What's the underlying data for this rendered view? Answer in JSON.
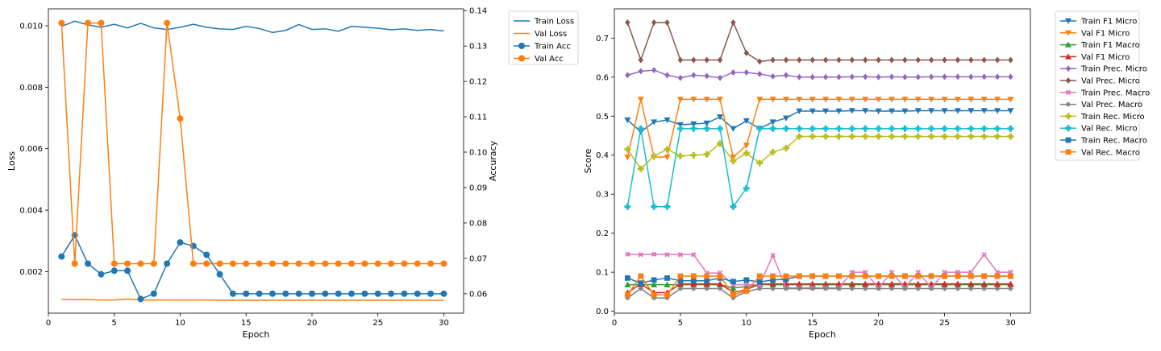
{
  "chart_data": [
    {
      "type": "line",
      "xlabel": "Epoch",
      "ylabel": "Loss",
      "y2label": "Accuracy",
      "x": [
        1,
        2,
        3,
        4,
        5,
        6,
        7,
        8,
        9,
        10,
        11,
        12,
        13,
        14,
        15,
        16,
        17,
        18,
        19,
        20,
        21,
        22,
        23,
        24,
        25,
        26,
        27,
        28,
        29,
        30
      ],
      "xlim": [
        0,
        31.5
      ],
      "ylim": [
        0.00065,
        0.01055
      ],
      "y2lim": [
        0.0545,
        0.1405
      ],
      "xticks": [
        0,
        5,
        10,
        15,
        20,
        25,
        30
      ],
      "yticks": [
        0.002,
        0.004,
        0.006,
        0.008,
        0.01
      ],
      "ytick_labels": [
        "0.002",
        "0.004",
        "0.006",
        "0.008",
        "0.010"
      ],
      "y2ticks": [
        0.06,
        0.07,
        0.08,
        0.09,
        0.1,
        0.11,
        0.12,
        0.13,
        0.14
      ],
      "y2tick_labels": [
        "0.06",
        "0.07",
        "0.08",
        "0.09",
        "0.10",
        "0.11",
        "0.12",
        "0.13",
        "0.14"
      ],
      "legend_position": "outside-top-right",
      "series": [
        {
          "name": "Train Loss",
          "axis": "left",
          "marker": "none",
          "color": "#1f77b4",
          "values": [
            0.00998,
            0.01015,
            0.01003,
            0.00995,
            0.01005,
            0.00993,
            0.01008,
            0.00993,
            0.00988,
            0.00995,
            0.01005,
            0.00995,
            0.0099,
            0.00988,
            0.00998,
            0.00991,
            0.00978,
            0.00985,
            0.01004,
            0.00988,
            0.0099,
            0.00982,
            0.00998,
            0.00995,
            0.00992,
            0.00987,
            0.0099,
            0.00985,
            0.00988,
            0.00983
          ]
        },
        {
          "name": "Val Loss",
          "axis": "left",
          "marker": "none",
          "color": "#ff7f0e",
          "values": [
            0.0011,
            0.00109,
            0.00109,
            0.00108,
            0.00108,
            0.00111,
            0.00108,
            0.00108,
            0.00108,
            0.00108,
            0.00108,
            0.00108,
            0.00107,
            0.00107,
            0.00107,
            0.00107,
            0.00107,
            0.00107,
            0.00107,
            0.00107,
            0.00107,
            0.00107,
            0.00107,
            0.00107,
            0.00107,
            0.00107,
            0.00107,
            0.00107,
            0.00107,
            0.00107
          ]
        },
        {
          "name": "Train Acc",
          "axis": "right",
          "marker": "circle",
          "color": "#1f77b4",
          "values": [
            0.0705,
            0.0765,
            0.0685,
            0.0655,
            0.0665,
            0.0665,
            0.0585,
            0.06,
            0.0685,
            0.0745,
            0.0735,
            0.071,
            0.0655,
            0.06,
            0.06,
            0.06,
            0.06,
            0.06,
            0.06,
            0.06,
            0.06,
            0.06,
            0.06,
            0.06,
            0.06,
            0.06,
            0.06,
            0.06,
            0.06,
            0.06
          ]
        },
        {
          "name": "Val Acc",
          "axis": "right",
          "marker": "circle",
          "color": "#ff7f0e",
          "values": [
            0.1365,
            0.0685,
            0.1365,
            0.1365,
            0.0685,
            0.0685,
            0.0685,
            0.0685,
            0.1365,
            0.1095,
            0.0685,
            0.0685,
            0.0685,
            0.0685,
            0.0685,
            0.0685,
            0.0685,
            0.0685,
            0.0685,
            0.0685,
            0.0685,
            0.0685,
            0.0685,
            0.0685,
            0.0685,
            0.0685,
            0.0685,
            0.0685,
            0.0685,
            0.0685
          ]
        }
      ]
    },
    {
      "type": "line",
      "xlabel": "Epoch",
      "ylabel": "Score",
      "x": [
        1,
        2,
        3,
        4,
        5,
        6,
        7,
        8,
        9,
        10,
        11,
        12,
        13,
        14,
        15,
        16,
        17,
        18,
        19,
        20,
        21,
        22,
        23,
        24,
        25,
        26,
        27,
        28,
        29,
        30
      ],
      "xlim": [
        0,
        31.5
      ],
      "ylim": [
        -0.005,
        0.775
      ],
      "xticks": [
        0,
        5,
        10,
        15,
        20,
        25,
        30
      ],
      "yticks": [
        0.0,
        0.1,
        0.2,
        0.3,
        0.4,
        0.5,
        0.6,
        0.7
      ],
      "ytick_labels": [
        "0.0",
        "0.1",
        "0.2",
        "0.3",
        "0.4",
        "0.5",
        "0.6",
        "0.7"
      ],
      "legend_position": "outside-top-right",
      "series": [
        {
          "name": "Train F1 Micro",
          "marker": "tri-down",
          "color": "#1f77b4",
          "values": [
            0.49,
            0.46,
            0.485,
            0.49,
            0.478,
            0.48,
            0.482,
            0.498,
            0.468,
            0.488,
            0.468,
            0.485,
            0.495,
            0.513,
            0.513,
            0.513,
            0.513,
            0.514,
            0.514,
            0.513,
            0.513,
            0.513,
            0.514,
            0.514,
            0.514,
            0.514,
            0.514,
            0.514,
            0.514,
            0.514
          ]
        },
        {
          "name": "Val F1 Micro",
          "marker": "tri-down",
          "color": "#ff7f0e",
          "values": [
            0.395,
            0.543,
            0.395,
            0.395,
            0.543,
            0.543,
            0.543,
            0.543,
            0.395,
            0.425,
            0.543,
            0.543,
            0.543,
            0.543,
            0.543,
            0.543,
            0.543,
            0.543,
            0.543,
            0.543,
            0.543,
            0.543,
            0.543,
            0.543,
            0.543,
            0.543,
            0.543,
            0.543,
            0.543,
            0.543
          ]
        },
        {
          "name": "Train F1 Macro",
          "marker": "tri-up",
          "color": "#2ca02c",
          "values": [
            0.068,
            0.068,
            0.068,
            0.068,
            0.068,
            0.068,
            0.068,
            0.068,
            0.06,
            0.063,
            0.068,
            0.068,
            0.068,
            0.068,
            0.068,
            0.068,
            0.068,
            0.068,
            0.068,
            0.068,
            0.068,
            0.068,
            0.068,
            0.068,
            0.068,
            0.068,
            0.068,
            0.068,
            0.068,
            0.068
          ]
        },
        {
          "name": "Val F1 Micro",
          "marker": "tri-up",
          "color": "#d62728",
          "values": [
            0.048,
            0.07,
            0.048,
            0.048,
            0.07,
            0.07,
            0.07,
            0.07,
            0.048,
            0.055,
            0.07,
            0.07,
            0.07,
            0.07,
            0.07,
            0.07,
            0.07,
            0.07,
            0.07,
            0.07,
            0.07,
            0.07,
            0.07,
            0.07,
            0.07,
            0.07,
            0.07,
            0.07,
            0.07,
            0.07
          ]
        },
        {
          "name": "Train Prec. Micro",
          "marker": "diamond",
          "color": "#9467bd",
          "values": [
            0.605,
            0.615,
            0.618,
            0.605,
            0.598,
            0.605,
            0.603,
            0.598,
            0.612,
            0.612,
            0.608,
            0.602,
            0.605,
            0.6,
            0.6,
            0.6,
            0.6,
            0.601,
            0.601,
            0.6,
            0.601,
            0.6,
            0.6,
            0.601,
            0.601,
            0.601,
            0.601,
            0.601,
            0.601,
            0.601
          ]
        },
        {
          "name": "Val Prec. Micro",
          "marker": "diamond",
          "color": "#8c564b",
          "values": [
            0.74,
            0.644,
            0.74,
            0.74,
            0.644,
            0.644,
            0.644,
            0.644,
            0.74,
            0.662,
            0.64,
            0.644,
            0.644,
            0.644,
            0.644,
            0.644,
            0.644,
            0.644,
            0.644,
            0.644,
            0.644,
            0.644,
            0.644,
            0.644,
            0.644,
            0.644,
            0.644,
            0.644,
            0.644,
            0.644
          ]
        },
        {
          "name": "Train Prec. Macro",
          "marker": "x",
          "color": "#e377c2",
          "values": [
            0.146,
            0.145,
            0.146,
            0.145,
            0.145,
            0.145,
            0.098,
            0.098,
            0.068,
            0.068,
            0.068,
            0.143,
            0.06,
            0.06,
            0.06,
            0.06,
            0.06,
            0.1,
            0.1,
            0.06,
            0.1,
            0.06,
            0.1,
            0.06,
            0.1,
            0.1,
            0.1,
            0.145,
            0.1,
            0.1
          ]
        },
        {
          "name": "Val Prec. Macro",
          "marker": "star",
          "color": "#7f7f7f",
          "values": [
            0.034,
            0.058,
            0.034,
            0.034,
            0.058,
            0.058,
            0.058,
            0.058,
            0.034,
            0.05,
            0.058,
            0.058,
            0.058,
            0.058,
            0.058,
            0.058,
            0.058,
            0.058,
            0.058,
            0.058,
            0.058,
            0.058,
            0.058,
            0.058,
            0.058,
            0.058,
            0.058,
            0.058,
            0.058,
            0.058
          ]
        },
        {
          "name": "Train Rec. Micro",
          "marker": "plus",
          "color": "#bcbd22",
          "values": [
            0.415,
            0.365,
            0.398,
            0.415,
            0.398,
            0.4,
            0.402,
            0.43,
            0.385,
            0.405,
            0.38,
            0.408,
            0.418,
            0.448,
            0.448,
            0.448,
            0.448,
            0.448,
            0.448,
            0.448,
            0.448,
            0.448,
            0.448,
            0.448,
            0.448,
            0.448,
            0.448,
            0.448,
            0.448,
            0.448
          ]
        },
        {
          "name": "Val Rec. Micro",
          "marker": "plus",
          "color": "#17becf",
          "values": [
            0.268,
            0.468,
            0.268,
            0.268,
            0.468,
            0.468,
            0.468,
            0.468,
            0.268,
            0.315,
            0.468,
            0.468,
            0.468,
            0.468,
            0.468,
            0.468,
            0.468,
            0.468,
            0.468,
            0.468,
            0.468,
            0.468,
            0.468,
            0.468,
            0.468,
            0.468,
            0.468,
            0.468,
            0.468,
            0.468
          ]
        },
        {
          "name": "Train Rec. Macro",
          "marker": "square",
          "color": "#1f77b4",
          "values": [
            0.085,
            0.072,
            0.08,
            0.085,
            0.078,
            0.078,
            0.078,
            0.085,
            0.076,
            0.08,
            0.075,
            0.08,
            0.082,
            0.09,
            0.09,
            0.09,
            0.09,
            0.09,
            0.09,
            0.09,
            0.09,
            0.09,
            0.09,
            0.09,
            0.09,
            0.09,
            0.09,
            0.09,
            0.09,
            0.09
          ]
        },
        {
          "name": "Val Rec. Macro",
          "marker": "square",
          "color": "#ff7f0e",
          "values": [
            0.042,
            0.09,
            0.042,
            0.042,
            0.09,
            0.09,
            0.09,
            0.09,
            0.042,
            0.052,
            0.09,
            0.09,
            0.09,
            0.09,
            0.09,
            0.09,
            0.09,
            0.09,
            0.09,
            0.09,
            0.09,
            0.09,
            0.09,
            0.09,
            0.09,
            0.09,
            0.09,
            0.09,
            0.09,
            0.09
          ]
        }
      ]
    }
  ]
}
